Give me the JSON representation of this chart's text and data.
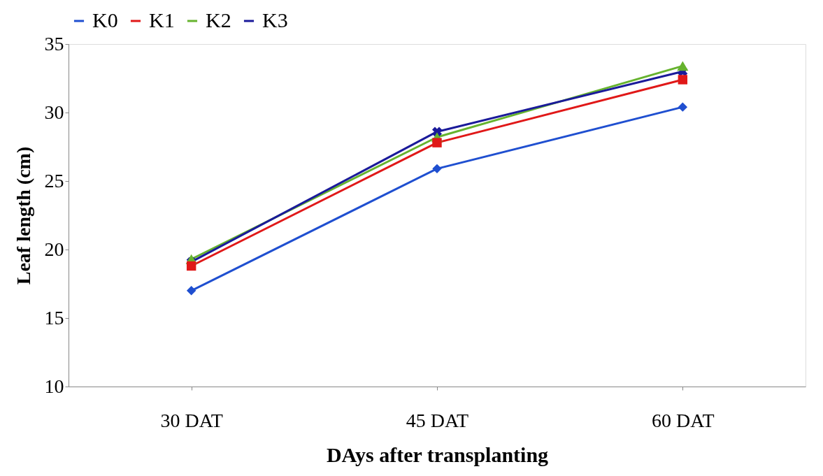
{
  "chart_data": {
    "type": "line",
    "xlabel": "DAys after transplanting",
    "ylabel": "Leaf length (cm)",
    "categories": [
      "30 DAT",
      "45 DAT",
      "60 DAT"
    ],
    "series": [
      {
        "name": "K0",
        "color": "#1f4fd0",
        "marker": "diamond",
        "values": [
          17.0,
          25.9,
          30.4
        ]
      },
      {
        "name": "K1",
        "color": "#e01818",
        "marker": "square",
        "values": [
          18.8,
          27.8,
          32.4
        ]
      },
      {
        "name": "K2",
        "color": "#66b32e",
        "marker": "triangle",
        "values": [
          19.3,
          28.2,
          33.4
        ]
      },
      {
        "name": "K3",
        "color": "#1a1a9a",
        "marker": "cross",
        "values": [
          19.1,
          28.6,
          33.0
        ]
      }
    ],
    "ylim": [
      10,
      35
    ],
    "yticks": [
      10,
      15,
      20,
      25,
      30,
      35
    ],
    "grid": false,
    "legend": "top",
    "line_style": "solid"
  }
}
